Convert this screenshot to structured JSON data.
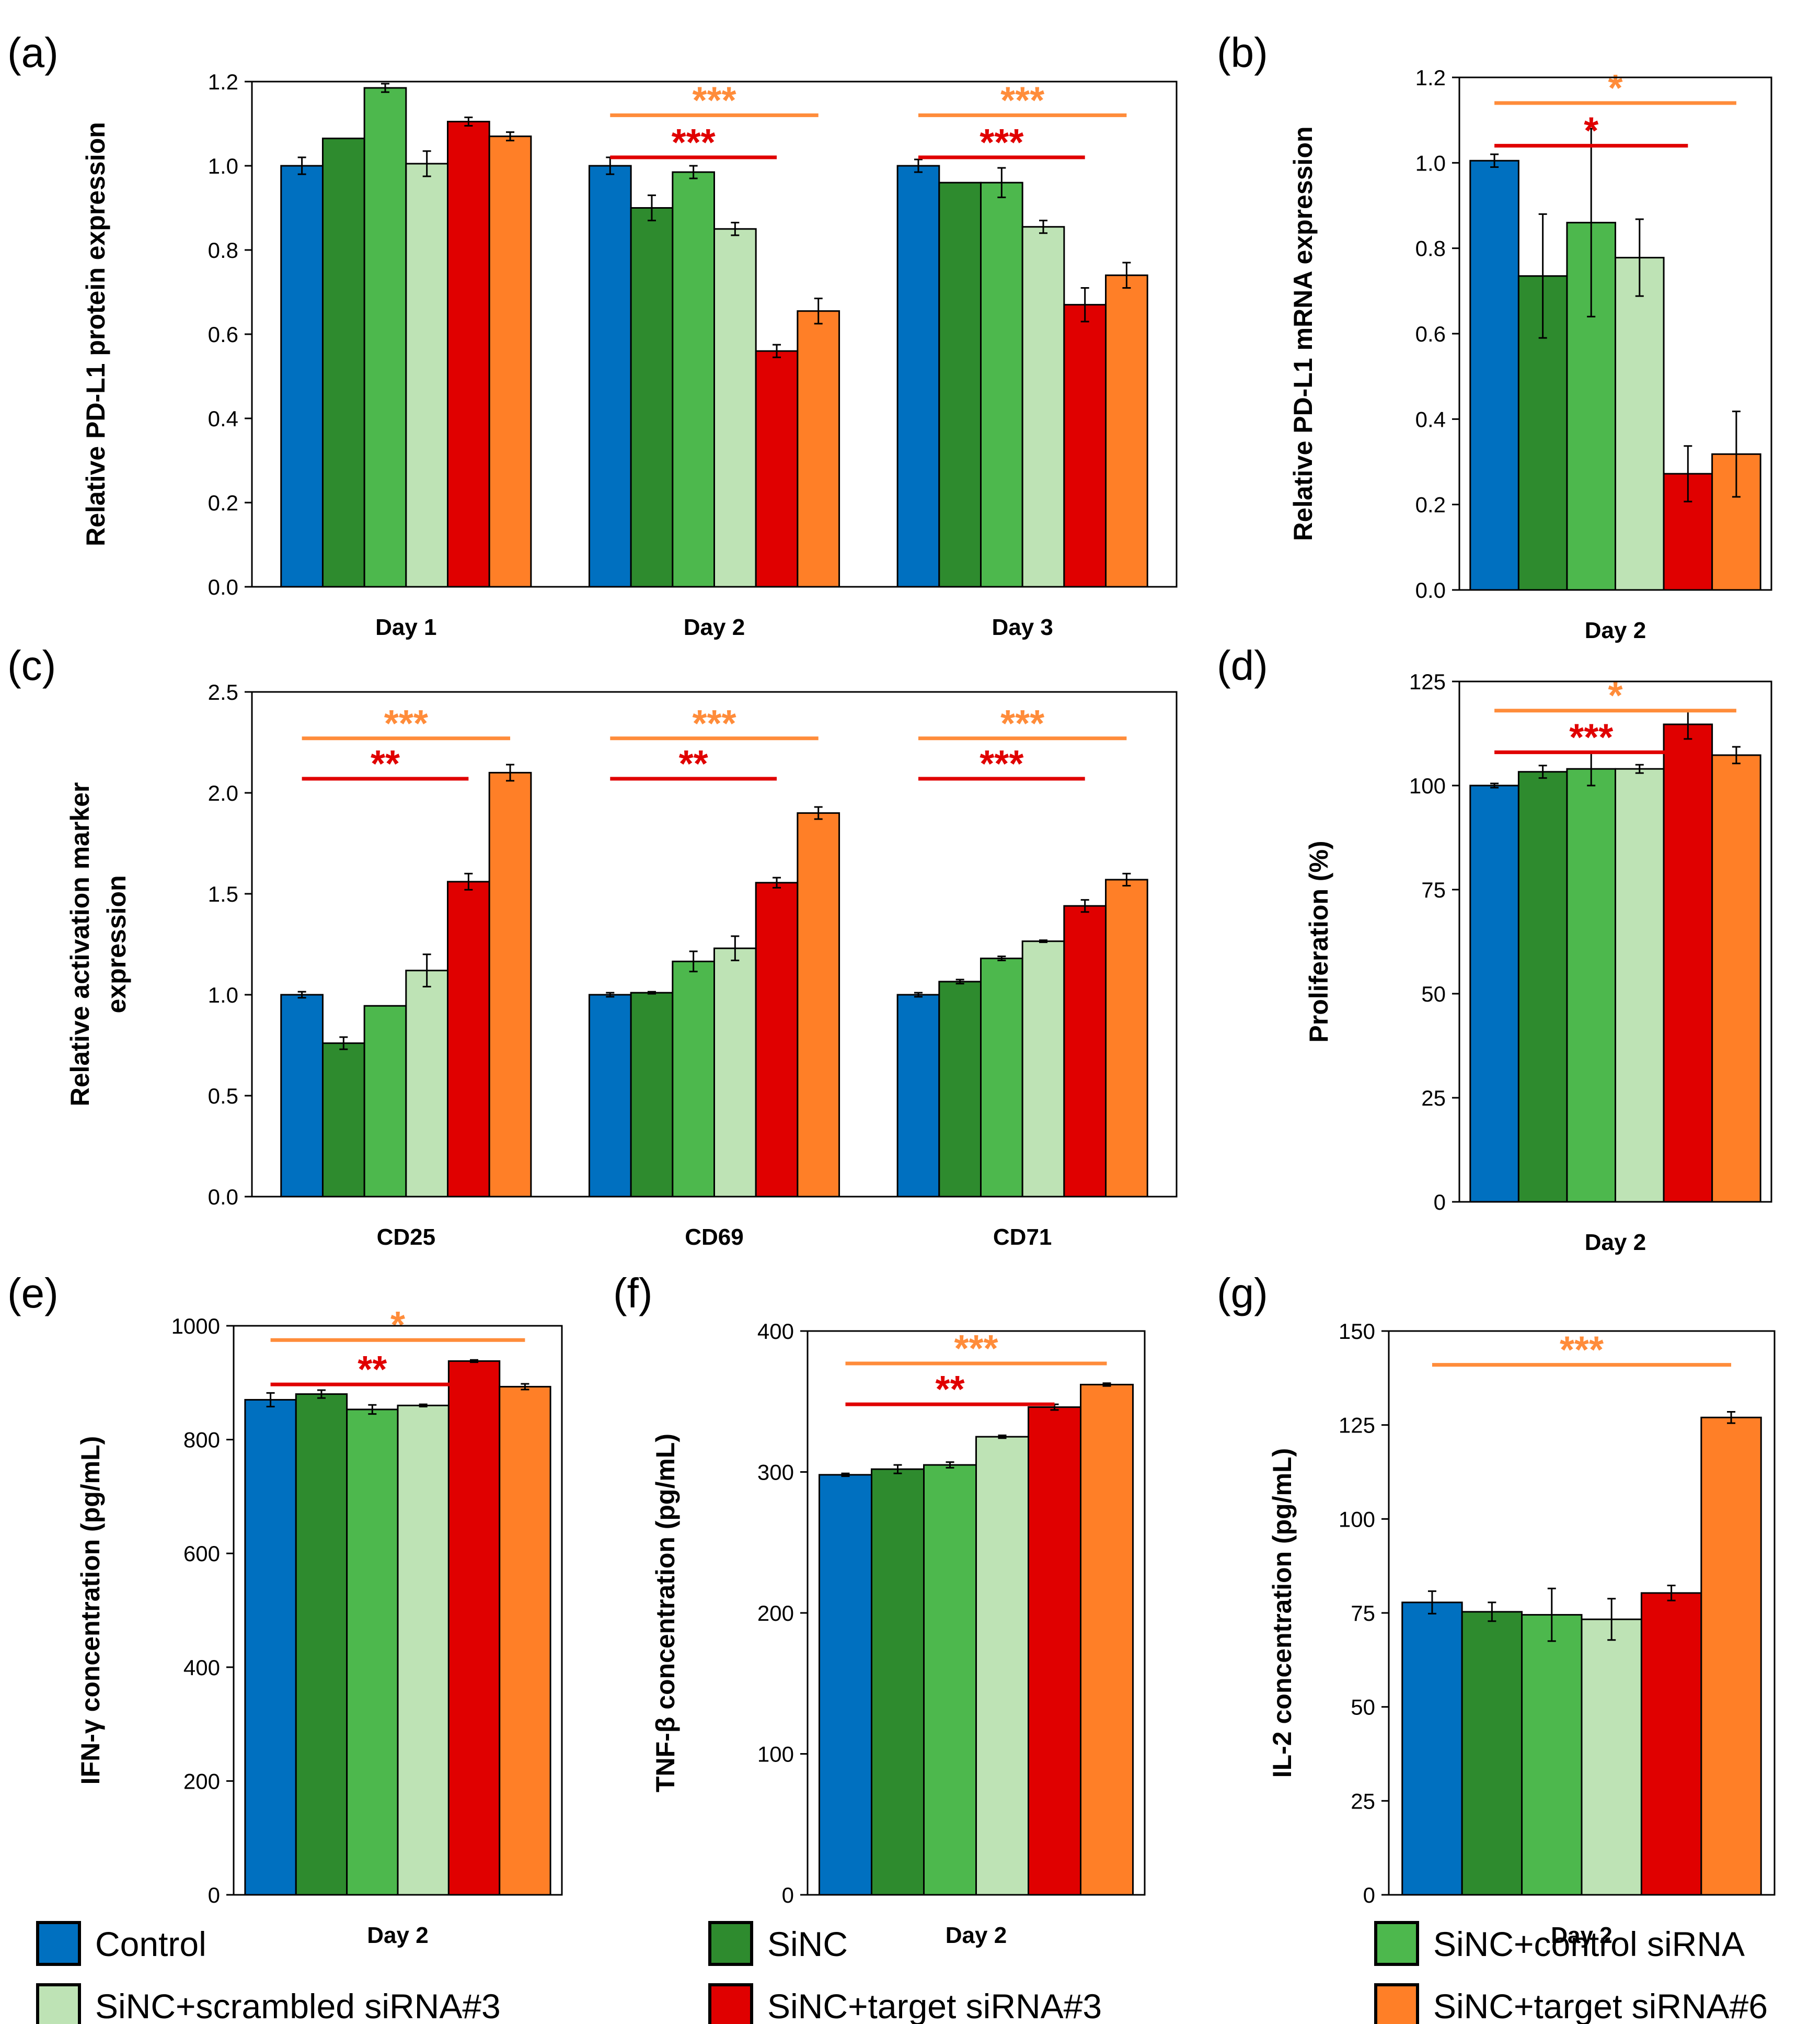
{
  "colors": {
    "control": "#0070C0",
    "sinc": "#2E8B2E",
    "sinc_control_sirna": "#4DB84D",
    "sinc_scrambled": "#BEE3B5",
    "sinc_target3": "#E00000",
    "sinc_target6": "#FF7F27"
  },
  "legend": {
    "items": [
      {
        "label": "Control",
        "color_key": "control"
      },
      {
        "label": "SiNC",
        "color_key": "sinc"
      },
      {
        "label": "SiNC+control siRNA",
        "color_key": "sinc_control_sirna"
      },
      {
        "label": "SiNC+scrambled siRNA#3",
        "color_key": "sinc_scrambled"
      },
      {
        "label": "SiNC+target siRNA#3",
        "color_key": "sinc_target3"
      },
      {
        "label": "SiNC+target siRNA#6",
        "color_key": "sinc_target6"
      }
    ]
  },
  "chart_data": [
    {
      "id": "a",
      "panel_label": "(a)",
      "type": "bar",
      "ylabel": "Relative PD-L1 protein expression",
      "ylim": [
        0,
        1.2
      ],
      "yticks": [
        "0.0",
        "0.2",
        "0.4",
        "0.6",
        "0.8",
        "1.0",
        "1.2"
      ],
      "categories": [
        "Day 1",
        "Day 2",
        "Day 3"
      ],
      "series": [
        {
          "name": "Control",
          "values": [
            1.0,
            1.0,
            1.0
          ],
          "errors": [
            0.02,
            0.02,
            0.015
          ]
        },
        {
          "name": "SiNC",
          "values": [
            1.065,
            0.9,
            0.96
          ],
          "errors": [
            0,
            0.03,
            0
          ]
        },
        {
          "name": "SiNC+control siRNA",
          "values": [
            1.185,
            0.985,
            0.96
          ],
          "errors": [
            0.01,
            0.015,
            0.035
          ]
        },
        {
          "name": "SiNC+scrambled siRNA#3",
          "values": [
            1.005,
            0.85,
            0.855
          ],
          "errors": [
            0.03,
            0.015,
            0.015
          ]
        },
        {
          "name": "SiNC+target siRNA#3",
          "values": [
            1.105,
            0.56,
            0.67
          ],
          "errors": [
            0.01,
            0.015,
            0.04
          ]
        },
        {
          "name": "SiNC+target siRNA#6",
          "values": [
            1.07,
            0.655,
            0.74
          ],
          "errors": [
            0.01,
            0.03,
            0.03
          ]
        }
      ],
      "significance": [
        {
          "group": 1,
          "from": 0,
          "to": 5,
          "label": "***",
          "color": "#FF8C3A",
          "level": 1.12
        },
        {
          "group": 1,
          "from": 0,
          "to": 4,
          "label": "***",
          "color": "#E00000",
          "level": 1.02
        },
        {
          "group": 2,
          "from": 0,
          "to": 5,
          "label": "***",
          "color": "#FF8C3A",
          "level": 1.12
        },
        {
          "group": 2,
          "from": 0,
          "to": 4,
          "label": "***",
          "color": "#E00000",
          "level": 1.02
        }
      ]
    },
    {
      "id": "b",
      "panel_label": "(b)",
      "type": "bar",
      "ylabel": "Relative PD-L1 mRNA expression",
      "ylim": [
        0,
        1.2
      ],
      "yticks": [
        "0.0",
        "0.2",
        "0.4",
        "0.6",
        "0.8",
        "1.0",
        "1.2"
      ],
      "categories": [
        "Day 2"
      ],
      "series": [
        {
          "name": "Control",
          "values": [
            1.005
          ],
          "errors": [
            0.015
          ]
        },
        {
          "name": "SiNC",
          "values": [
            0.735
          ],
          "errors": [
            0.145
          ]
        },
        {
          "name": "SiNC+control siRNA",
          "values": [
            0.86
          ],
          "errors": [
            0.22
          ]
        },
        {
          "name": "SiNC+scrambled siRNA#3",
          "values": [
            0.778
          ],
          "errors": [
            0.09
          ]
        },
        {
          "name": "SiNC+target siRNA#3",
          "values": [
            0.272
          ],
          "errors": [
            0.065
          ]
        },
        {
          "name": "SiNC+target siRNA#6",
          "values": [
            0.318
          ],
          "errors": [
            0.1
          ]
        }
      ],
      "significance": [
        {
          "group": 0,
          "from": 0,
          "to": 5,
          "label": "*",
          "color": "#FF8C3A",
          "level": 1.14
        },
        {
          "group": 0,
          "from": 0,
          "to": 4,
          "label": "*",
          "color": "#E00000",
          "level": 1.04
        }
      ]
    },
    {
      "id": "c",
      "panel_label": "(c)",
      "type": "bar",
      "ylabel": "Relative activation marker expression",
      "ylabel_lines": [
        "Relative activation marker",
        "expression"
      ],
      "ylim": [
        0,
        2.5
      ],
      "yticks": [
        "0.0",
        "0.5",
        "1.0",
        "1.5",
        "2.0",
        "2.5"
      ],
      "categories": [
        "CD25",
        "CD69",
        "CD71"
      ],
      "series": [
        {
          "name": "Control",
          "values": [
            1.0,
            1.0,
            1.0
          ],
          "errors": [
            0.015,
            0.01,
            0.01
          ]
        },
        {
          "name": "SiNC",
          "values": [
            0.76,
            1.01,
            1.065
          ],
          "errors": [
            0.03,
            0.005,
            0.01
          ]
        },
        {
          "name": "SiNC+control siRNA",
          "values": [
            0.945,
            1.165,
            1.18
          ],
          "errors": [
            0,
            0.05,
            0.01
          ]
        },
        {
          "name": "SiNC+scrambled siRNA#3",
          "values": [
            1.12,
            1.23,
            1.265
          ],
          "errors": [
            0.08,
            0.06,
            0.005
          ]
        },
        {
          "name": "SiNC+target siRNA#3",
          "values": [
            1.56,
            1.555,
            1.44
          ],
          "errors": [
            0.04,
            0.025,
            0.03
          ]
        },
        {
          "name": "SiNC+target siRNA#6",
          "values": [
            2.1,
            1.9,
            1.57
          ],
          "errors": [
            0.04,
            0.03,
            0.03
          ]
        }
      ],
      "significance": [
        {
          "group": 0,
          "from": 0,
          "to": 5,
          "label": "***",
          "color": "#FF8C3A",
          "level": 2.27
        },
        {
          "group": 0,
          "from": 0,
          "to": 4,
          "label": "**",
          "color": "#E00000",
          "level": 2.07
        },
        {
          "group": 1,
          "from": 0,
          "to": 5,
          "label": "***",
          "color": "#FF8C3A",
          "level": 2.27
        },
        {
          "group": 1,
          "from": 0,
          "to": 4,
          "label": "**",
          "color": "#E00000",
          "level": 2.07
        },
        {
          "group": 2,
          "from": 0,
          "to": 5,
          "label": "***",
          "color": "#FF8C3A",
          "level": 2.27
        },
        {
          "group": 2,
          "from": 0,
          "to": 4,
          "label": "***",
          "color": "#E00000",
          "level": 2.07
        }
      ]
    },
    {
      "id": "d",
      "panel_label": "(d)",
      "type": "bar",
      "ylabel": "Proliferation (%)",
      "ylim": [
        0,
        125
      ],
      "yticks": [
        "0",
        "25",
        "50",
        "75",
        "100",
        "125"
      ],
      "categories": [
        "Day 2"
      ],
      "series": [
        {
          "name": "Control",
          "values": [
            100
          ],
          "errors": [
            0.5
          ]
        },
        {
          "name": "SiNC",
          "values": [
            103.3
          ],
          "errors": [
            1.5
          ]
        },
        {
          "name": "SiNC+control siRNA",
          "values": [
            104
          ],
          "errors": [
            4
          ]
        },
        {
          "name": "SiNC+scrambled siRNA#3",
          "values": [
            104
          ],
          "errors": [
            1.0
          ]
        },
        {
          "name": "SiNC+target siRNA#3",
          "values": [
            114.7
          ],
          "errors": [
            3.5
          ]
        },
        {
          "name": "SiNC+target siRNA#6",
          "values": [
            107.3
          ],
          "errors": [
            2.0
          ]
        }
      ],
      "significance": [
        {
          "group": 0,
          "from": 0,
          "to": 5,
          "label": "*",
          "color": "#FF8C3A",
          "level": 118
        },
        {
          "group": 0,
          "from": 0,
          "to": 4,
          "label": "***",
          "color": "#E00000",
          "level": 108
        }
      ]
    },
    {
      "id": "e",
      "panel_label": "(e)",
      "type": "bar",
      "ylabel": "IFN-γ concentration (pg/mL)",
      "ylim": [
        0,
        1000
      ],
      "yticks": [
        "0",
        "200",
        "400",
        "600",
        "800",
        "1000"
      ],
      "categories": [
        "Day 2"
      ],
      "series": [
        {
          "name": "Control",
          "values": [
            870
          ],
          "errors": [
            12
          ]
        },
        {
          "name": "SiNC",
          "values": [
            880
          ],
          "errors": [
            7
          ]
        },
        {
          "name": "SiNC+control siRNA",
          "values": [
            853
          ],
          "errors": [
            8
          ]
        },
        {
          "name": "SiNC+scrambled siRNA#3",
          "values": [
            860
          ],
          "errors": [
            2
          ]
        },
        {
          "name": "SiNC+target siRNA#3",
          "values": [
            938
          ],
          "errors": [
            2
          ]
        },
        {
          "name": "SiNC+target siRNA#6",
          "values": [
            893
          ],
          "errors": [
            5
          ]
        }
      ],
      "significance": [
        {
          "group": 0,
          "from": 0,
          "to": 5,
          "label": "*",
          "color": "#FF8C3A",
          "level": 975
        },
        {
          "group": 0,
          "from": 0,
          "to": 4,
          "label": "**",
          "color": "#E00000",
          "level": 897
        }
      ]
    },
    {
      "id": "f",
      "panel_label": "(f)",
      "type": "bar",
      "ylabel": "TNF-β concentration (pg/mL)",
      "ylim": [
        0,
        400
      ],
      "yticks": [
        "0",
        "100",
        "200",
        "300",
        "400"
      ],
      "categories": [
        "Day 2"
      ],
      "series": [
        {
          "name": "Control",
          "values": [
            298
          ],
          "errors": [
            1
          ]
        },
        {
          "name": "SiNC",
          "values": [
            302
          ],
          "errors": [
            3
          ]
        },
        {
          "name": "SiNC+control siRNA",
          "values": [
            305
          ],
          "errors": [
            2
          ]
        },
        {
          "name": "SiNC+scrambled siRNA#3",
          "values": [
            325
          ],
          "errors": [
            1
          ]
        },
        {
          "name": "SiNC+target siRNA#3",
          "values": [
            346
          ],
          "errors": [
            2
          ]
        },
        {
          "name": "SiNC+target siRNA#6",
          "values": [
            362
          ],
          "errors": [
            1
          ]
        }
      ],
      "significance": [
        {
          "group": 0,
          "from": 0,
          "to": 5,
          "label": "***",
          "color": "#FF8C3A",
          "level": 377
        },
        {
          "group": 0,
          "from": 0,
          "to": 4,
          "label": "**",
          "color": "#E00000",
          "level": 348
        }
      ]
    },
    {
      "id": "g",
      "panel_label": "(g)",
      "type": "bar",
      "ylabel": "IL-2 concentration (pg/mL)",
      "ylim": [
        0,
        150
      ],
      "yticks": [
        "0",
        "25",
        "50",
        "75",
        "100",
        "125",
        "150"
      ],
      "categories": [
        "Day 2"
      ],
      "series": [
        {
          "name": "Control",
          "values": [
            77.8
          ],
          "errors": [
            3
          ]
        },
        {
          "name": "SiNC",
          "values": [
            75.3
          ],
          "errors": [
            2.5
          ]
        },
        {
          "name": "SiNC+control siRNA",
          "values": [
            74.5
          ],
          "errors": [
            7
          ]
        },
        {
          "name": "SiNC+scrambled siRNA#3",
          "values": [
            73.3
          ],
          "errors": [
            5.5
          ]
        },
        {
          "name": "SiNC+target siRNA#3",
          "values": [
            80.3
          ],
          "errors": [
            2
          ]
        },
        {
          "name": "SiNC+target siRNA#6",
          "values": [
            127
          ],
          "errors": [
            1.5
          ]
        }
      ],
      "significance": [
        {
          "group": 0,
          "from": 0,
          "to": 5,
          "label": "***",
          "color": "#FF8C3A",
          "level": 141
        }
      ]
    }
  ]
}
